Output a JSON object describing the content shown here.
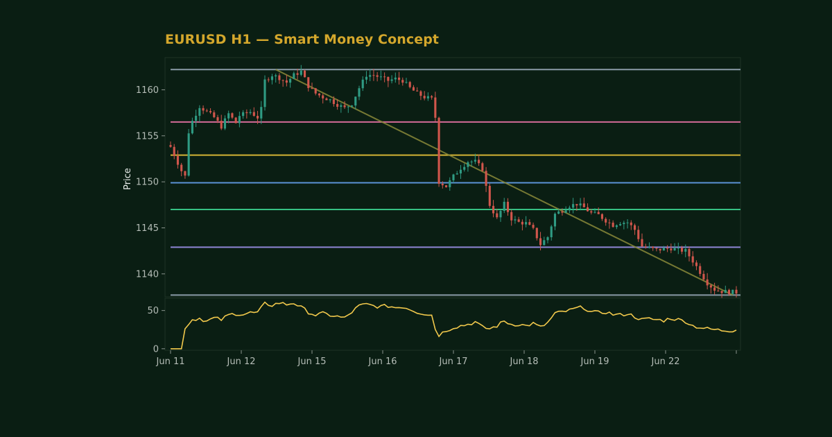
{
  "chart_data": {
    "type": "candlestick",
    "title": "EURUSD H1 — Smart Money Concept",
    "ylabel": "Price",
    "x_labels": [
      "Jun 11",
      "Jun 12",
      "Jun 15",
      "Jun 16",
      "Jun 17",
      "Jun 18",
      "Jun 19",
      "Jun 22"
    ],
    "price_panel": {
      "ylim": [
        1137.5,
        1163.5
      ],
      "yticks": [
        1140,
        1145,
        1150,
        1155,
        1160
      ],
      "levels": [
        {
          "value": 1162.2,
          "color": "#8a9ba8"
        },
        {
          "value": 1156.5,
          "color": "#d36a97"
        },
        {
          "value": 1152.9,
          "color": "#d4b435"
        },
        {
          "value": 1149.9,
          "color": "#5b93d6"
        },
        {
          "value": 1147.0,
          "color": "#36c184"
        },
        {
          "value": 1142.9,
          "color": "#8f86d6"
        },
        {
          "value": 1137.7,
          "color": "#8a9ba8"
        }
      ],
      "trendline": {
        "from": [
          29,
          1162.2
        ],
        "to": [
          155,
          1137.7
        ],
        "color": "#8a8a3a"
      },
      "up_color": "#2f9b83",
      "down_color": "#d0564c",
      "anchors": [
        [
          0,
          1153.8
        ],
        [
          3,
          1151.2
        ],
        [
          4,
          1150.6
        ],
        [
          5,
          1155.4
        ],
        [
          6,
          1156.6
        ],
        [
          8,
          1158.2
        ],
        [
          10,
          1157.6
        ],
        [
          12,
          1157.0
        ],
        [
          14,
          1156.0
        ],
        [
          16,
          1157.4
        ],
        [
          18,
          1156.4
        ],
        [
          19,
          1157.2
        ],
        [
          22,
          1157.6
        ],
        [
          24,
          1157.0
        ],
        [
          25,
          1157.9
        ],
        [
          26,
          1161.0
        ],
        [
          28,
          1161.6
        ],
        [
          30,
          1161.3
        ],
        [
          32,
          1160.8
        ],
        [
          34,
          1161.6
        ],
        [
          36,
          1162.0
        ],
        [
          38,
          1160.4
        ],
        [
          40,
          1159.6
        ],
        [
          42,
          1159.2
        ],
        [
          44,
          1158.9
        ],
        [
          46,
          1158.4
        ],
        [
          48,
          1158.0
        ],
        [
          50,
          1158.5
        ],
        [
          52,
          1160.2
        ],
        [
          54,
          1161.6
        ],
        [
          56,
          1161.6
        ],
        [
          58,
          1161.3
        ],
        [
          60,
          1161.0
        ],
        [
          62,
          1161.2
        ],
        [
          64,
          1161.0
        ],
        [
          66,
          1160.2
        ],
        [
          68,
          1159.6
        ],
        [
          70,
          1159.2
        ],
        [
          72,
          1159.0
        ],
        [
          73,
          1157.0
        ],
        [
          74,
          1150.0
        ],
        [
          76,
          1149.5
        ],
        [
          78,
          1150.6
        ],
        [
          80,
          1151.5
        ],
        [
          82,
          1152.2
        ],
        [
          84,
          1152.2
        ],
        [
          86,
          1151.4
        ],
        [
          88,
          1147.5
        ],
        [
          90,
          1146.0
        ],
        [
          92,
          1147.6
        ],
        [
          94,
          1146.0
        ],
        [
          96,
          1145.6
        ],
        [
          98,
          1145.5
        ],
        [
          100,
          1144.8
        ],
        [
          102,
          1143.2
        ],
        [
          104,
          1144.0
        ],
        [
          106,
          1146.5
        ],
        [
          108,
          1146.9
        ],
        [
          110,
          1147.4
        ],
        [
          112,
          1147.6
        ],
        [
          114,
          1147.2
        ],
        [
          116,
          1146.6
        ],
        [
          118,
          1146.4
        ],
        [
          120,
          1145.8
        ],
        [
          122,
          1145.3
        ],
        [
          124,
          1145.6
        ],
        [
          126,
          1145.6
        ],
        [
          128,
          1144.8
        ],
        [
          130,
          1143.0
        ],
        [
          132,
          1142.8
        ],
        [
          134,
          1142.6
        ],
        [
          136,
          1142.7
        ],
        [
          138,
          1142.8
        ],
        [
          140,
          1142.6
        ],
        [
          142,
          1142.5
        ],
        [
          144,
          1141.4
        ],
        [
          146,
          1140.2
        ],
        [
          148,
          1139.0
        ],
        [
          150,
          1138.3
        ],
        [
          152,
          1138.1
        ],
        [
          156,
          1138.0
        ]
      ]
    },
    "rsi_panel": {
      "ylim": [
        -2,
        66
      ],
      "yticks": [
        0,
        50
      ],
      "color": "#f2c94c",
      "anchors": [
        [
          0,
          0
        ],
        [
          3,
          0
        ],
        [
          4,
          28
        ],
        [
          6,
          38
        ],
        [
          8,
          40
        ],
        [
          10,
          36
        ],
        [
          12,
          40
        ],
        [
          14,
          38
        ],
        [
          16,
          44
        ],
        [
          18,
          46
        ],
        [
          20,
          45
        ],
        [
          22,
          47
        ],
        [
          24,
          47
        ],
        [
          26,
          59
        ],
        [
          28,
          57
        ],
        [
          30,
          60
        ],
        [
          32,
          58
        ],
        [
          34,
          60
        ],
        [
          36,
          54
        ],
        [
          38,
          48
        ],
        [
          40,
          44
        ],
        [
          42,
          46
        ],
        [
          44,
          44
        ],
        [
          46,
          42
        ],
        [
          48,
          40
        ],
        [
          50,
          48
        ],
        [
          52,
          56
        ],
        [
          54,
          58
        ],
        [
          56,
          56
        ],
        [
          58,
          55
        ],
        [
          60,
          56
        ],
        [
          62,
          54
        ],
        [
          64,
          55
        ],
        [
          66,
          52
        ],
        [
          68,
          48
        ],
        [
          70,
          46
        ],
        [
          72,
          44
        ],
        [
          73,
          26
        ],
        [
          74,
          18
        ],
        [
          76,
          24
        ],
        [
          78,
          28
        ],
        [
          80,
          30
        ],
        [
          82,
          32
        ],
        [
          84,
          35
        ],
        [
          86,
          28
        ],
        [
          88,
          26
        ],
        [
          90,
          30
        ],
        [
          92,
          36
        ],
        [
          94,
          32
        ],
        [
          96,
          32
        ],
        [
          98,
          30
        ],
        [
          100,
          33
        ],
        [
          102,
          28
        ],
        [
          104,
          34
        ],
        [
          106,
          46
        ],
        [
          108,
          48
        ],
        [
          110,
          50
        ],
        [
          112,
          53
        ],
        [
          114,
          54
        ],
        [
          116,
          48
        ],
        [
          118,
          47
        ],
        [
          120,
          48
        ],
        [
          122,
          45
        ],
        [
          124,
          44
        ],
        [
          126,
          46
        ],
        [
          128,
          42
        ],
        [
          130,
          38
        ],
        [
          132,
          39
        ],
        [
          134,
          38
        ],
        [
          136,
          37
        ],
        [
          138,
          40
        ],
        [
          140,
          38
        ],
        [
          142,
          36
        ],
        [
          144,
          30
        ],
        [
          146,
          28
        ],
        [
          148,
          26
        ],
        [
          150,
          25
        ],
        [
          152,
          24
        ],
        [
          155,
          24
        ],
        [
          156,
          26
        ]
      ]
    },
    "n_bars": 157,
    "grid": false
  }
}
